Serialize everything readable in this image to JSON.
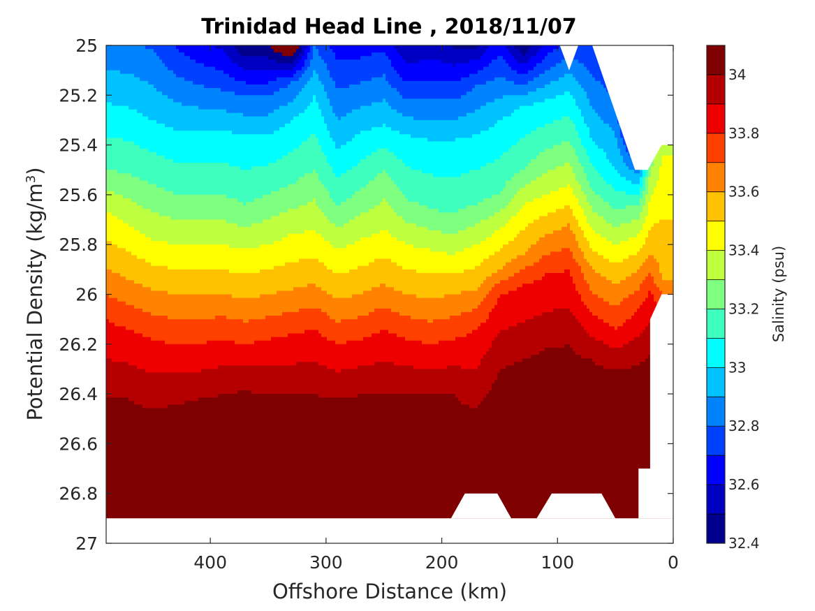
{
  "chart_data": {
    "type": "heatmap",
    "subtype": "filled-contour",
    "title": "Trinidad Head Line , 2018/11/07",
    "xlabel": "Offshore Distance (km)",
    "ylabel_main": "Potential Density (kg/m",
    "ylabel_sup": "3",
    "ylabel_close": ")",
    "xlim": [
      490,
      0
    ],
    "x_reversed": true,
    "ylim": [
      25,
      27
    ],
    "y_reversed": true,
    "x_ticks": [
      400,
      300,
      200,
      100,
      0
    ],
    "x_tick_labels": [
      "400",
      "300",
      "200",
      "100",
      "0"
    ],
    "y_ticks": [
      25,
      25.2,
      25.4,
      25.6,
      25.8,
      26,
      26.2,
      26.4,
      26.6,
      26.8,
      27
    ],
    "y_tick_labels": [
      "25",
      "25.2",
      "25.4",
      "25.6",
      "25.8",
      "26",
      "26.2",
      "26.4",
      "26.6",
      "26.8",
      "27"
    ],
    "colorbar": {
      "label": "Salinity (psu)",
      "range": [
        32.4,
        34.1
      ],
      "levels": [
        32.4,
        32.5,
        32.6,
        32.7,
        32.8,
        32.9,
        33.0,
        33.1,
        33.2,
        33.3,
        33.4,
        33.5,
        33.6,
        33.7,
        33.8,
        33.9,
        34.0,
        34.1
      ],
      "colors": [
        "#00008c",
        "#0000c2",
        "#0000ff",
        "#0041ff",
        "#0083ff",
        "#00c2ff",
        "#00ffff",
        "#3fffbe",
        "#7fff7f",
        "#beff3f",
        "#ffff00",
        "#ffc200",
        "#ff8300",
        "#ff4100",
        "#ef0000",
        "#b40000",
        "#7f0000"
      ],
      "ticks": [
        32.4,
        32.6,
        32.8,
        33,
        33.2,
        33.4,
        33.6,
        33.8,
        34
      ],
      "tick_labels": [
        "32.4",
        "32.6",
        "32.8",
        "33",
        "33.2",
        "33.4",
        "33.6",
        "33.8",
        "34"
      ]
    },
    "station_distance_km": [
      490,
      470,
      450,
      430,
      410,
      390,
      370,
      350,
      330,
      310,
      290,
      270,
      250,
      230,
      210,
      190,
      170,
      150,
      130,
      110,
      90,
      70,
      50,
      30,
      20,
      10
    ],
    "isohaline_density": [
      {
        "salinity": 32.6,
        "density": [
          null,
          null,
          null,
          null,
          null,
          null,
          25.1,
          25.1,
          25.1,
          null,
          null,
          null,
          null,
          null,
          25.05,
          25.08,
          25.06,
          null,
          null,
          null,
          null,
          null,
          null,
          null,
          null,
          null
        ]
      },
      {
        "salinity": 32.8,
        "density": [
          null,
          null,
          25.02,
          25.12,
          25.16,
          25.18,
          25.2,
          25.2,
          25.15,
          25.0,
          25.18,
          25.15,
          25.12,
          25.22,
          25.22,
          25.22,
          25.16,
          25.12,
          25.16,
          25.1,
          25.04,
          25.12,
          25.22,
          null,
          null,
          null
        ]
      },
      {
        "salinity": 33.0,
        "density": [
          25.23,
          25.25,
          25.3,
          25.34,
          25.34,
          25.34,
          25.36,
          25.36,
          25.3,
          25.2,
          25.42,
          25.35,
          25.32,
          25.36,
          25.38,
          25.38,
          25.36,
          25.3,
          25.24,
          25.22,
          25.18,
          25.38,
          25.5,
          25.56,
          null,
          null
        ]
      },
      {
        "salinity": 33.2,
        "density": [
          25.5,
          25.52,
          25.56,
          25.6,
          25.6,
          25.6,
          25.64,
          25.6,
          25.56,
          25.5,
          25.65,
          25.58,
          25.5,
          25.62,
          25.66,
          25.68,
          25.64,
          25.6,
          25.5,
          25.42,
          25.38,
          25.58,
          25.66,
          25.64,
          null,
          null
        ]
      },
      {
        "salinity": 33.4,
        "density": [
          25.66,
          25.72,
          25.78,
          25.8,
          25.8,
          25.8,
          25.82,
          25.8,
          25.76,
          25.74,
          25.82,
          25.78,
          25.74,
          25.8,
          25.82,
          25.84,
          25.8,
          25.74,
          25.64,
          25.6,
          25.56,
          25.74,
          25.8,
          25.76,
          25.62,
          25.45
        ]
      },
      {
        "salinity": 33.6,
        "density": [
          25.9,
          25.94,
          25.98,
          26.0,
          26.0,
          26.0,
          26.02,
          26.0,
          25.98,
          25.96,
          26.02,
          26.0,
          25.96,
          26.0,
          26.02,
          26.0,
          25.98,
          25.9,
          25.84,
          25.76,
          25.72,
          25.9,
          25.96,
          25.9,
          25.84,
          25.94
        ]
      },
      {
        "salinity": 33.8,
        "density": [
          26.1,
          26.14,
          26.18,
          26.2,
          26.2,
          26.18,
          26.2,
          26.18,
          26.16,
          26.14,
          26.2,
          26.18,
          26.14,
          26.18,
          26.2,
          26.18,
          26.14,
          26.0,
          25.96,
          25.92,
          25.9,
          26.08,
          26.14,
          26.06,
          25.98,
          26.05
        ]
      },
      {
        "salinity": 34.0,
        "density": [
          26.42,
          26.42,
          26.46,
          26.44,
          26.42,
          26.4,
          26.38,
          26.4,
          26.4,
          26.4,
          26.42,
          26.4,
          26.4,
          26.4,
          26.4,
          26.4,
          26.46,
          26.3,
          26.26,
          26.22,
          26.2,
          26.26,
          26.3,
          26.28,
          26.24,
          null
        ]
      },
      {
        "salinity": 34.1,
        "density": [
          26.72,
          26.8,
          26.82,
          26.74,
          26.72,
          26.7,
          26.84,
          26.76,
          26.7,
          26.66,
          26.72,
          26.74,
          26.7,
          26.78,
          26.84,
          26.86,
          26.62,
          26.56,
          26.52,
          26.52,
          26.54,
          26.6,
          26.6,
          26.6,
          26.56,
          null
        ]
      }
    ]
  }
}
